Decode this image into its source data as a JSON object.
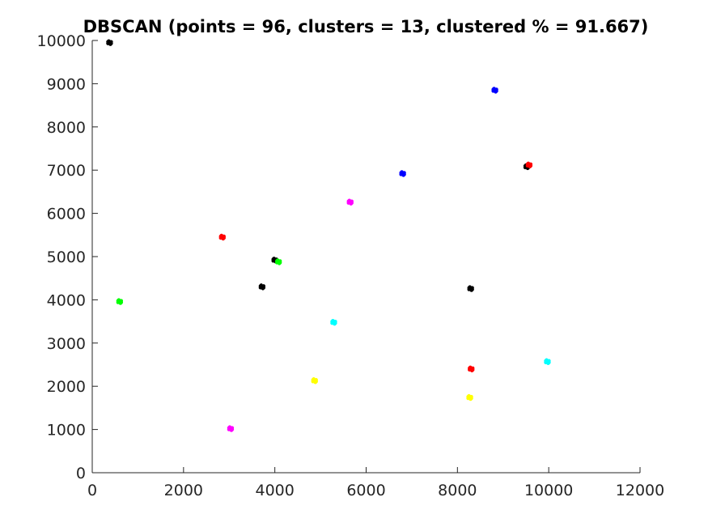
{
  "chart_data": {
    "type": "scatter",
    "title": "DBSCAN (points = 96, clusters = 13, clustered % = 91.667)",
    "xlabel": "",
    "ylabel": "",
    "xlim": [
      0,
      12000
    ],
    "ylim": [
      0,
      10000
    ],
    "xticks": [
      0,
      2000,
      4000,
      6000,
      8000,
      10000,
      12000
    ],
    "yticks": [
      0,
      1000,
      2000,
      3000,
      4000,
      5000,
      6000,
      7000,
      8000,
      9000,
      10000
    ],
    "xtick_labels": [
      "0",
      "2000",
      "4000",
      "6000",
      "8000",
      "10000",
      "12000"
    ],
    "ytick_labels": [
      "0",
      "1000",
      "2000",
      "3000",
      "4000",
      "5000",
      "6000",
      "7000",
      "8000",
      "9000",
      "10000"
    ],
    "grid": false,
    "legend": "none",
    "colors": {
      "black": "#000000",
      "blue": "#0000ff",
      "red": "#ff0000",
      "magenta": "#ff00ff",
      "green": "#00ff00",
      "cyan": "#00ffff",
      "yellow": "#ffff00"
    },
    "series": [
      {
        "color": "black",
        "points": [
          [
            380,
            9950
          ],
          [
            9520,
            7080
          ],
          [
            4000,
            4920
          ],
          [
            3720,
            4300
          ],
          [
            8290,
            4260
          ]
        ]
      },
      {
        "color": "blue",
        "points": [
          [
            8820,
            8850
          ],
          [
            6800,
            6920
          ]
        ]
      },
      {
        "color": "red",
        "points": [
          [
            9570,
            7120
          ],
          [
            2850,
            5450
          ],
          [
            8300,
            2400
          ]
        ]
      },
      {
        "color": "magenta",
        "points": [
          [
            5650,
            6260
          ],
          [
            3030,
            1020
          ]
        ]
      },
      {
        "color": "green",
        "points": [
          [
            4080,
            4880
          ],
          [
            600,
            3960
          ]
        ]
      },
      {
        "color": "cyan",
        "points": [
          [
            5290,
            3480
          ],
          [
            9970,
            2570
          ]
        ]
      },
      {
        "color": "yellow",
        "points": [
          [
            4870,
            2130
          ],
          [
            8270,
            1740
          ]
        ]
      }
    ]
  }
}
